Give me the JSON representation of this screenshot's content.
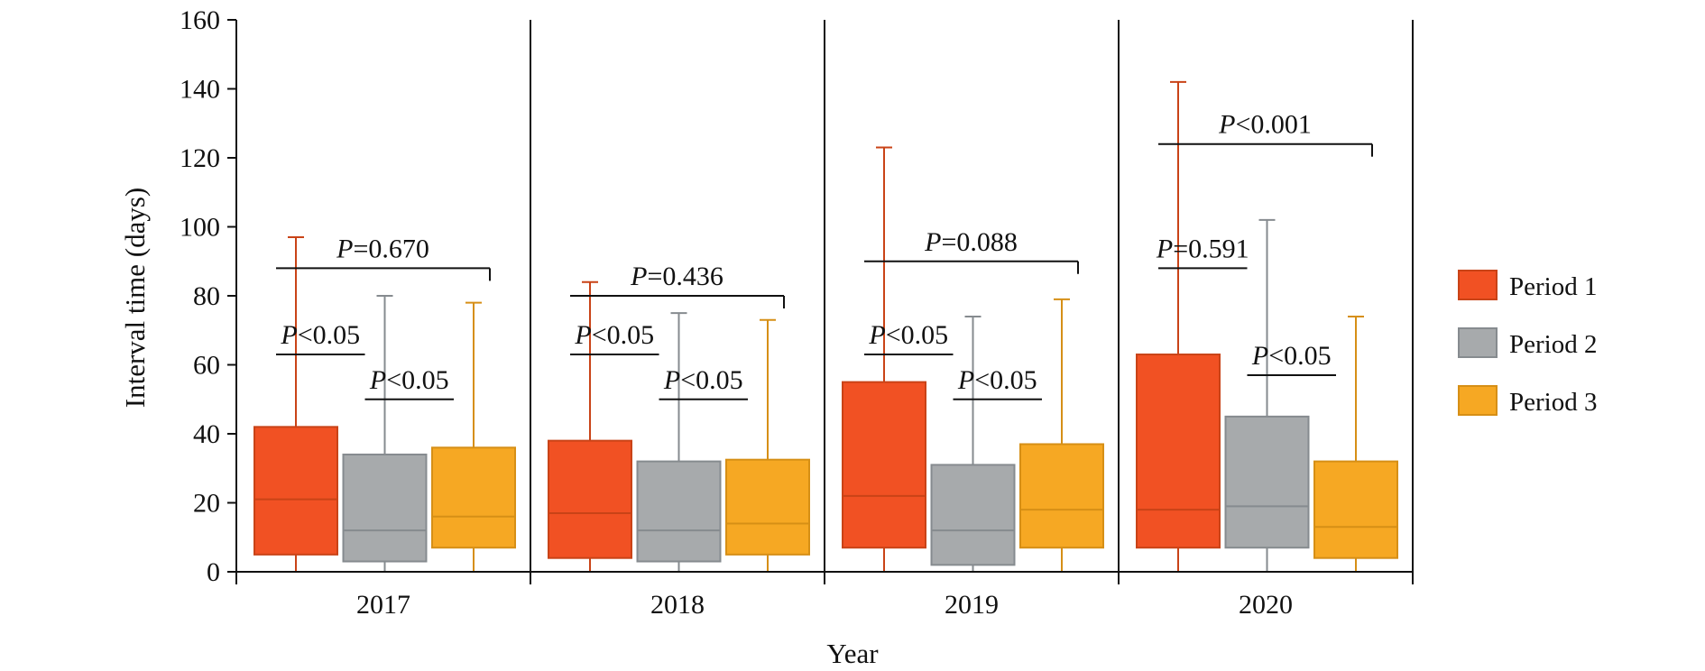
{
  "chart_data": {
    "type": "box",
    "xlabel": "Year",
    "ylabel": "Interval time (days)",
    "ylim": [
      0,
      160
    ],
    "yticks": [
      0,
      20,
      40,
      60,
      80,
      100,
      120,
      140,
      160
    ],
    "categories": [
      "2017",
      "2018",
      "2019",
      "2020"
    ],
    "legend_position": "right",
    "series": [
      {
        "name": "Period 1",
        "color": "#f15123",
        "stroke": "#c94317",
        "boxes": [
          {
            "min": 0,
            "q1": 5,
            "median": 21,
            "q3": 42,
            "max": 97
          },
          {
            "min": 0,
            "q1": 4,
            "median": 17,
            "q3": 38,
            "max": 84
          },
          {
            "min": 0,
            "q1": 7,
            "median": 22,
            "q3": 55,
            "max": 123
          },
          {
            "min": 0,
            "q1": 7,
            "median": 18,
            "q3": 63,
            "max": 142
          }
        ]
      },
      {
        "name": "Period 2",
        "color": "#a7aaac",
        "stroke": "#868b8f",
        "boxes": [
          {
            "min": 0,
            "q1": 3,
            "median": 12,
            "q3": 34,
            "max": 80
          },
          {
            "min": 0,
            "q1": 3,
            "median": 12,
            "q3": 32,
            "max": 75
          },
          {
            "min": 0,
            "q1": 2,
            "median": 12,
            "q3": 31,
            "max": 74
          },
          {
            "min": 0,
            "q1": 7,
            "median": 19,
            "q3": 45,
            "max": 102
          }
        ]
      },
      {
        "name": "Period 3",
        "color": "#f6a823",
        "stroke": "#d68f16",
        "boxes": [
          {
            "min": 0,
            "q1": 7,
            "median": 16,
            "q3": 36,
            "max": 78
          },
          {
            "min": 0,
            "q1": 5,
            "median": 14,
            "q3": 32.5,
            "max": 73
          },
          {
            "min": 0,
            "q1": 7,
            "median": 18,
            "q3": 37,
            "max": 79
          },
          {
            "min": 0,
            "q1": 4,
            "median": 13,
            "q3": 32,
            "max": 74
          }
        ]
      }
    ],
    "annotations": [
      {
        "category": "2017",
        "from": 1,
        "to": 3,
        "y": 88,
        "symbol": "P",
        "text": "=0.670"
      },
      {
        "category": "2017",
        "from": 1,
        "to": 2,
        "y": 63,
        "symbol": "P",
        "text": "<0.05"
      },
      {
        "category": "2017",
        "from": 2,
        "to": 3,
        "y": 50,
        "symbol": "P",
        "text": "<0.05"
      },
      {
        "category": "2018",
        "from": 1,
        "to": 3,
        "y": 80,
        "symbol": "P",
        "text": "=0.436"
      },
      {
        "category": "2018",
        "from": 1,
        "to": 2,
        "y": 63,
        "symbol": "P",
        "text": "<0.05"
      },
      {
        "category": "2018",
        "from": 2,
        "to": 3,
        "y": 50,
        "symbol": "P",
        "text": "<0.05"
      },
      {
        "category": "2019",
        "from": 1,
        "to": 3,
        "y": 90,
        "symbol": "P",
        "text": "=0.088"
      },
      {
        "category": "2019",
        "from": 1,
        "to": 2,
        "y": 63,
        "symbol": "P",
        "text": "<0.05"
      },
      {
        "category": "2019",
        "from": 2,
        "to": 3,
        "y": 50,
        "symbol": "P",
        "text": "<0.05"
      },
      {
        "category": "2020",
        "from": 1,
        "to": 3,
        "y": 124,
        "symbol": "P",
        "text": "<0.001"
      },
      {
        "category": "2020",
        "from": 1,
        "to": 2,
        "y": 88,
        "symbol": "P",
        "text": "=0.591"
      },
      {
        "category": "2020",
        "from": 2,
        "to": 3,
        "y": 57,
        "symbol": "P",
        "text": "<0.05"
      }
    ]
  }
}
